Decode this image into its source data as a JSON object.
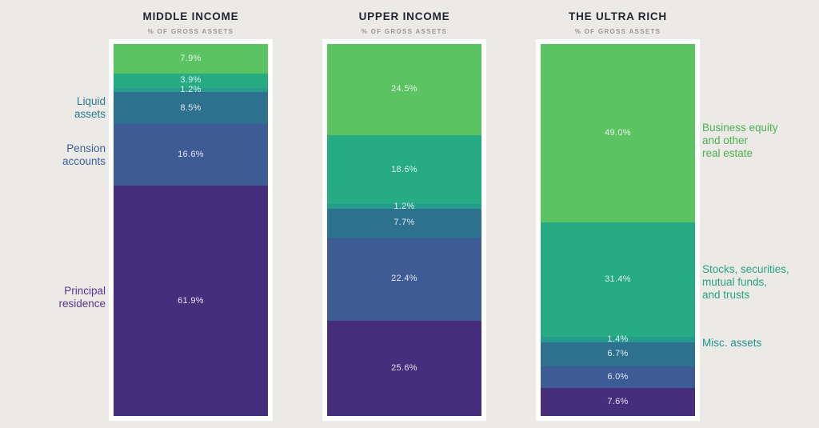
{
  "colors": {
    "background": "#ebeae7",
    "card_background": "#ffffff",
    "title_text": "#22262e",
    "subtitle_text": "#9b9890"
  },
  "chart_data": {
    "type": "bar",
    "stacked": true,
    "orientation": "vertical",
    "unit": "% of gross assets",
    "categories": [
      "MIDDLE INCOME",
      "UPPER INCOME",
      "THE ULTRA RICH"
    ],
    "subtitle": "% OF GROSS ASSETS",
    "segment_order_top_to_bottom": [
      "Business equity and other real estate",
      "Stocks, securities, mutual funds, and trusts",
      "Misc. assets",
      "Liquid assets",
      "Pension accounts",
      "Principal residence"
    ],
    "series": [
      {
        "name": "Business equity and other real estate",
        "color": "#5cc363",
        "values": [
          7.9,
          24.5,
          49.0
        ]
      },
      {
        "name": "Stocks, securities, mutual funds, and trusts",
        "color": "#26ab82",
        "values": [
          3.9,
          18.6,
          31.4
        ]
      },
      {
        "name": "Misc. assets",
        "color": "#279b8e",
        "values": [
          1.2,
          1.2,
          1.4
        ]
      },
      {
        "name": "Liquid assets",
        "color": "#2d718e",
        "values": [
          8.5,
          7.7,
          6.7
        ]
      },
      {
        "name": "Pension accounts",
        "color": "#3d5b94",
        "values": [
          16.6,
          22.4,
          6.0
        ]
      },
      {
        "name": "Principal residence",
        "color": "#472e7c",
        "values": [
          61.9,
          25.6,
          7.6
        ]
      }
    ],
    "value_suffix": "%",
    "legend_position": "annotations-outside",
    "grid": false
  },
  "annotations": {
    "left": {
      "liquid": {
        "text": "Liquid\nassets",
        "color": "#2b7b92"
      },
      "pension": {
        "text": "Pension\naccounts",
        "color": "#40609c"
      },
      "principal": {
        "text": "Principal\nresidence",
        "color": "#56358c"
      }
    },
    "right": {
      "business": {
        "text": "Business equity\nand other\nreal estate",
        "color": "#4eb152"
      },
      "stocks": {
        "text": "Stocks, securities,\nmutual funds,\nand trusts",
        "color": "#28a383"
      },
      "misc": {
        "text": "Misc. assets",
        "color": "#22938d"
      }
    }
  }
}
